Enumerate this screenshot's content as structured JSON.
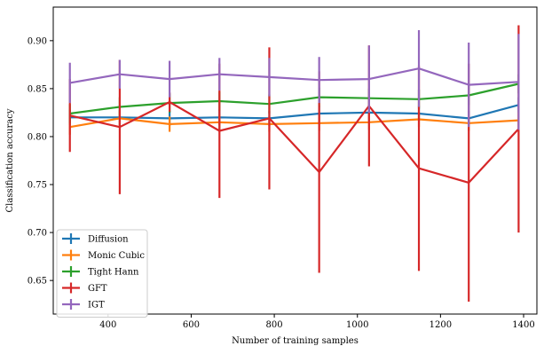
{
  "chart_data": {
    "type": "line",
    "xlabel": "Number of training samples",
    "ylabel": "Classification accuracy",
    "xlim": [
      268,
      1432
    ],
    "ylim": [
      0.615,
      0.935
    ],
    "xticks": [
      400,
      600,
      800,
      1000,
      1200,
      1400
    ],
    "yticks": [
      0.65,
      0.7,
      0.75,
      0.8,
      0.85,
      0.9
    ],
    "ytick_labels": [
      "0.65",
      "0.70",
      "0.75",
      "0.80",
      "0.85",
      "0.90"
    ],
    "legend_position": "lower-left",
    "grid": false,
    "x": [
      308,
      428,
      548,
      668,
      788,
      908,
      1028,
      1148,
      1268,
      1388
    ],
    "series": [
      {
        "name": "Diffusion",
        "color": "#1f77b4",
        "values": [
          0.82,
          0.82,
          0.819,
          0.82,
          0.819,
          0.824,
          0.825,
          0.824,
          0.819,
          0.833
        ],
        "errors": [
          0.008,
          0.008,
          0.008,
          0.008,
          0.008,
          0.008,
          0.008,
          0.008,
          0.008,
          0.008
        ]
      },
      {
        "name": "Monic Cubic",
        "color": "#ff7f0e",
        "values": [
          0.81,
          0.819,
          0.813,
          0.815,
          0.813,
          0.814,
          0.815,
          0.818,
          0.814,
          0.817
        ],
        "errors": [
          0.008,
          0.008,
          0.008,
          0.008,
          0.008,
          0.008,
          0.008,
          0.008,
          0.008,
          0.008
        ]
      },
      {
        "name": "Tight Hann",
        "color": "#2ca02c",
        "values": [
          0.824,
          0.831,
          0.835,
          0.837,
          0.834,
          0.841,
          0.84,
          0.839,
          0.843,
          0.855
        ],
        "errors": [
          0.01,
          0.01,
          0.01,
          0.01,
          0.01,
          0.01,
          0.01,
          0.01,
          0.01,
          0.01
        ]
      },
      {
        "name": "GFT",
        "color": "#d62728",
        "values": [
          0.822,
          0.81,
          0.836,
          0.806,
          0.819,
          0.763,
          0.832,
          0.767,
          0.752,
          0.808
        ],
        "errors": [
          0.038,
          0.07,
          0.01,
          0.07,
          0.074,
          0.105,
          0.063,
          0.107,
          0.124,
          0.108
        ]
      },
      {
        "name": "IGT",
        "color": "#9467bd",
        "values": [
          0.856,
          0.865,
          0.86,
          0.865,
          0.862,
          0.859,
          0.86,
          0.871,
          0.854,
          0.857
        ],
        "errors": [
          0.021,
          0.015,
          0.019,
          0.017,
          0.02,
          0.024,
          0.035,
          0.04,
          0.044,
          0.05
        ]
      }
    ]
  }
}
